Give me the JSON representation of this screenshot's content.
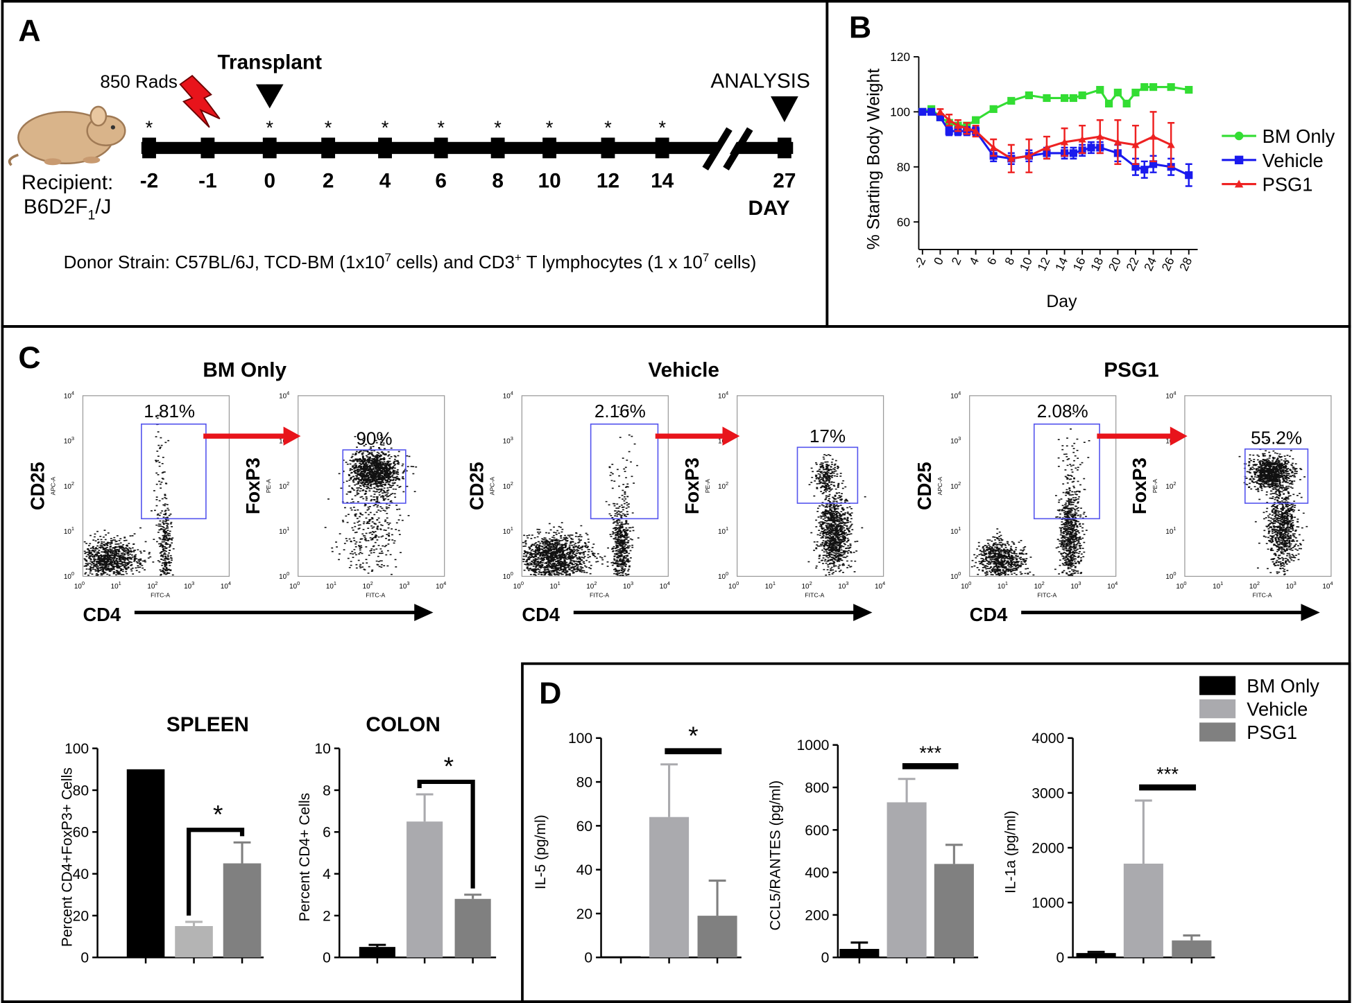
{
  "panel_labels": {
    "a": "A",
    "b": "B",
    "c": "C",
    "d": "D"
  },
  "timeline": {
    "radiation": "850 Rads",
    "transplant": "Transplant",
    "analysis": "ANALYSIS",
    "recipient": "Recipient:",
    "strain": [
      {
        "t": "B6D2F"
      },
      {
        "t": "1",
        "pos": "sub"
      },
      {
        "t": "/J"
      }
    ],
    "day_label": "DAY",
    "days": [
      {
        "day": "-2",
        "mark": "*"
      },
      {
        "day": "-1"
      },
      {
        "day": "0",
        "mark": "*"
      },
      {
        "day": "2",
        "mark": "*"
      },
      {
        "day": "4",
        "mark": "*"
      },
      {
        "day": "6",
        "mark": "*"
      },
      {
        "day": "8",
        "mark": "*"
      },
      {
        "day": "10",
        "mark": "*"
      },
      {
        "day": "12",
        "mark": "*"
      },
      {
        "day": "14",
        "mark": "*"
      },
      {
        "day": "27"
      }
    ],
    "donor": [
      {
        "t": "Donor Strain: C57BL/6J, TCD-BM (1x10"
      },
      {
        "t": "7",
        "pos": "super"
      },
      {
        "t": " cells) and CD3"
      },
      {
        "t": "+",
        "pos": "super"
      },
      {
        "t": " T lymphocytes (1 x 10"
      },
      {
        "t": "7",
        "pos": "super"
      },
      {
        "t": " cells)"
      }
    ]
  },
  "flow": {
    "x_label": "CD4",
    "y1_label": "CD25",
    "y2_label": "FoxP3",
    "x_sub": "FITC-A",
    "y1_sub": "APC-A",
    "y2_sub": "PE-A",
    "tick_base": "10",
    "tick_exponents": [
      "0",
      "1",
      "2",
      "3",
      "4"
    ],
    "groups": [
      {
        "title": "BM Only",
        "gate1": "1.81%",
        "gate2": "90%"
      },
      {
        "title": "Vehicle",
        "gate1": "2.16%",
        "gate2": "17%"
      },
      {
        "title": "PSG1",
        "gate1": "2.08%",
        "gate2": "55.2%"
      }
    ]
  },
  "legend": [
    {
      "name": "BM Only",
      "color": "#000000"
    },
    {
      "name": "Vehicle",
      "color": "#aaaaae"
    },
    {
      "name": "PSG1",
      "color": "#808080"
    }
  ],
  "chart_data": [
    {
      "type": "line",
      "x_label": "Day",
      "y_label": "% Starting Body Weight",
      "xlim": [
        -3,
        29
      ],
      "ylim": [
        50,
        120
      ],
      "xticks": [
        -2,
        0,
        2,
        4,
        6,
        8,
        10,
        12,
        14,
        16,
        18,
        20,
        22,
        24,
        26,
        28
      ],
      "yticks": [
        60,
        80,
        100,
        120
      ],
      "series": [
        {
          "name": "BM Only",
          "color": "#33dd33",
          "marker": "square",
          "x": [
            -2,
            -1,
            0,
            1,
            2,
            3,
            4,
            6,
            8,
            10,
            12,
            14,
            15,
            16,
            18,
            19,
            20,
            21,
            22,
            23,
            24,
            26,
            28
          ],
          "values": [
            100,
            101,
            98,
            96,
            95,
            95,
            97,
            101,
            104,
            106,
            105,
            105,
            105,
            106,
            108,
            103,
            107,
            103,
            107,
            109,
            109,
            109,
            108
          ]
        },
        {
          "name": "Vehicle",
          "color": "#1a1aee",
          "marker": "square",
          "x": [
            -2,
            -1,
            0,
            1,
            2,
            3,
            4,
            6,
            8,
            10,
            12,
            14,
            15,
            16,
            17,
            18,
            20,
            22,
            23,
            24,
            26,
            28
          ],
          "values": [
            100,
            100,
            98,
            93,
            93,
            93,
            93,
            84,
            83,
            84,
            85,
            85,
            85,
            86,
            87,
            87,
            85,
            80,
            79,
            81,
            80,
            77
          ],
          "errors": [
            1,
            1,
            1,
            1.5,
            1.5,
            1.5,
            1.5,
            2,
            2,
            2,
            2,
            2,
            2,
            2,
            2,
            2,
            3,
            3,
            3,
            3,
            3,
            4
          ]
        },
        {
          "name": "PSG1",
          "color": "#ee2222",
          "marker": "triangle",
          "x": [
            0,
            1,
            2,
            3,
            4,
            6,
            8,
            10,
            12,
            14,
            16,
            18,
            20,
            22,
            24,
            26
          ],
          "values": [
            100,
            97,
            95,
            94,
            93,
            87,
            83,
            84,
            87,
            89,
            90,
            91,
            89,
            88,
            91,
            88
          ],
          "errors": [
            1,
            2,
            2,
            2,
            2,
            3,
            5,
            6,
            4,
            5,
            5,
            6,
            8,
            7,
            9,
            8
          ]
        }
      ]
    },
    {
      "type": "bar",
      "title": "SPLEEN",
      "y_label": "Percent CD4+FoxP3+ Cells",
      "categories": [
        null,
        null,
        null
      ],
      "values": [
        90,
        15,
        45
      ],
      "errors": [
        null,
        2,
        10
      ],
      "colors": [
        "#000000",
        "#b4b4b4",
        "#808080"
      ],
      "ylim": [
        0,
        100
      ],
      "yticks": [
        0,
        20,
        40,
        60,
        80,
        100
      ],
      "significance": {
        "label": "*",
        "between": [
          1,
          2
        ],
        "style": "bracket"
      }
    },
    {
      "type": "bar",
      "title": "COLON",
      "y_label": "Percent CD4+ Cells",
      "categories": [
        null,
        null,
        null
      ],
      "values": [
        0.5,
        6.5,
        2.8
      ],
      "errors": [
        0.1,
        1.3,
        0.2
      ],
      "colors": [
        "#000000",
        "#aaaaae",
        "#808080"
      ],
      "ylim": [
        0,
        10
      ],
      "yticks": [
        0,
        2,
        4,
        6,
        8,
        10
      ],
      "significance": {
        "label": "*",
        "between": [
          1,
          2
        ],
        "style": "bracket"
      }
    },
    {
      "type": "bar",
      "y_label": "IL-5 (pg/ml)",
      "categories": [
        null,
        null,
        null
      ],
      "values": [
        0.5,
        64,
        19
      ],
      "errors": [
        null,
        24,
        16
      ],
      "colors": [
        "#000000",
        "#aaaaae",
        "#808080"
      ],
      "ylim": [
        0,
        100
      ],
      "yticks": [
        0,
        20,
        40,
        60,
        80,
        100
      ],
      "significance": {
        "label": "*",
        "between": [
          1,
          2
        ],
        "style": "bar"
      }
    },
    {
      "type": "bar",
      "y_label": "CCL5/RANTES (pg/ml)",
      "categories": [
        null,
        null,
        null
      ],
      "values": [
        40,
        730,
        440
      ],
      "errors": [
        30,
        110,
        90
      ],
      "colors": [
        "#000000",
        "#aaaaae",
        "#808080"
      ],
      "ylim": [
        0,
        1000
      ],
      "yticks": [
        0,
        200,
        400,
        600,
        800,
        1000
      ],
      "significance": {
        "label": "***",
        "between": [
          1,
          2
        ],
        "style": "bar"
      }
    },
    {
      "type": "bar",
      "y_label": "IL-1a (pg/ml)",
      "categories": [
        null,
        null,
        null
      ],
      "values": [
        80,
        1710,
        310
      ],
      "errors": [
        20,
        1150,
        90
      ],
      "colors": [
        "#000000",
        "#aaaaae",
        "#808080"
      ],
      "ylim": [
        0,
        4000
      ],
      "yticks": [
        0,
        1000,
        2000,
        3000,
        4000
      ],
      "significance": {
        "label": "***",
        "between": [
          1,
          2
        ],
        "style": "bar"
      }
    }
  ]
}
